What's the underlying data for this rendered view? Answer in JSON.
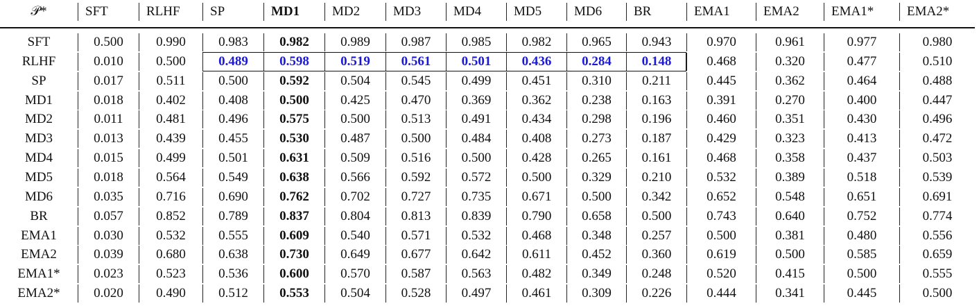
{
  "table": {
    "header": [
      "𝒫*",
      "SFT",
      "RLHF",
      "SP",
      "MD1",
      "MD2",
      "MD3",
      "MD4",
      "MD5",
      "MD6",
      "BR",
      "EMA1",
      "EMA2",
      "EMA1*",
      "EMA2*"
    ],
    "rows": [
      [
        "SFT",
        "0.500",
        "0.990",
        "0.983",
        "0.982",
        "0.989",
        "0.987",
        "0.985",
        "0.982",
        "0.965",
        "0.943",
        "0.970",
        "0.961",
        "0.977",
        "0.980"
      ],
      [
        "RLHF",
        "0.010",
        "0.500",
        "0.489",
        "0.598",
        "0.519",
        "0.561",
        "0.501",
        "0.436",
        "0.284",
        "0.148",
        "0.468",
        "0.320",
        "0.477",
        "0.510"
      ],
      [
        "SP",
        "0.017",
        "0.511",
        "0.500",
        "0.592",
        "0.504",
        "0.545",
        "0.499",
        "0.451",
        "0.310",
        "0.211",
        "0.445",
        "0.362",
        "0.464",
        "0.488"
      ],
      [
        "MD1",
        "0.018",
        "0.402",
        "0.408",
        "0.500",
        "0.425",
        "0.470",
        "0.369",
        "0.362",
        "0.238",
        "0.163",
        "0.391",
        "0.270",
        "0.400",
        "0.447"
      ],
      [
        "MD2",
        "0.011",
        "0.481",
        "0.496",
        "0.575",
        "0.500",
        "0.513",
        "0.491",
        "0.434",
        "0.298",
        "0.196",
        "0.460",
        "0.351",
        "0.430",
        "0.496"
      ],
      [
        "MD3",
        "0.013",
        "0.439",
        "0.455",
        "0.530",
        "0.487",
        "0.500",
        "0.484",
        "0.408",
        "0.273",
        "0.187",
        "0.429",
        "0.323",
        "0.413",
        "0.472"
      ],
      [
        "MD4",
        "0.015",
        "0.499",
        "0.501",
        "0.631",
        "0.509",
        "0.516",
        "0.500",
        "0.428",
        "0.265",
        "0.161",
        "0.468",
        "0.358",
        "0.437",
        "0.503"
      ],
      [
        "MD5",
        "0.018",
        "0.564",
        "0.549",
        "0.638",
        "0.566",
        "0.592",
        "0.572",
        "0.500",
        "0.329",
        "0.210",
        "0.532",
        "0.389",
        "0.518",
        "0.539"
      ],
      [
        "MD6",
        "0.035",
        "0.716",
        "0.690",
        "0.762",
        "0.702",
        "0.727",
        "0.735",
        "0.671",
        "0.500",
        "0.342",
        "0.652",
        "0.548",
        "0.651",
        "0.691"
      ],
      [
        "BR",
        "0.057",
        "0.852",
        "0.789",
        "0.837",
        "0.804",
        "0.813",
        "0.839",
        "0.790",
        "0.658",
        "0.500",
        "0.743",
        "0.640",
        "0.752",
        "0.774"
      ],
      [
        "EMA1",
        "0.030",
        "0.532",
        "0.555",
        "0.609",
        "0.540",
        "0.571",
        "0.532",
        "0.468",
        "0.348",
        "0.257",
        "0.500",
        "0.381",
        "0.480",
        "0.556"
      ],
      [
        "EMA2",
        "0.039",
        "0.680",
        "0.638",
        "0.730",
        "0.649",
        "0.677",
        "0.642",
        "0.611",
        "0.452",
        "0.360",
        "0.619",
        "0.500",
        "0.585",
        "0.659"
      ],
      [
        "EMA1*",
        "0.023",
        "0.523",
        "0.536",
        "0.600",
        "0.570",
        "0.587",
        "0.563",
        "0.482",
        "0.349",
        "0.248",
        "0.520",
        "0.415",
        "0.500",
        "0.555"
      ],
      [
        "EMA2*",
        "0.020",
        "0.490",
        "0.512",
        "0.553",
        "0.504",
        "0.528",
        "0.497",
        "0.461",
        "0.309",
        "0.226",
        "0.444",
        "0.341",
        "0.445",
        "0.500"
      ]
    ]
  }
}
